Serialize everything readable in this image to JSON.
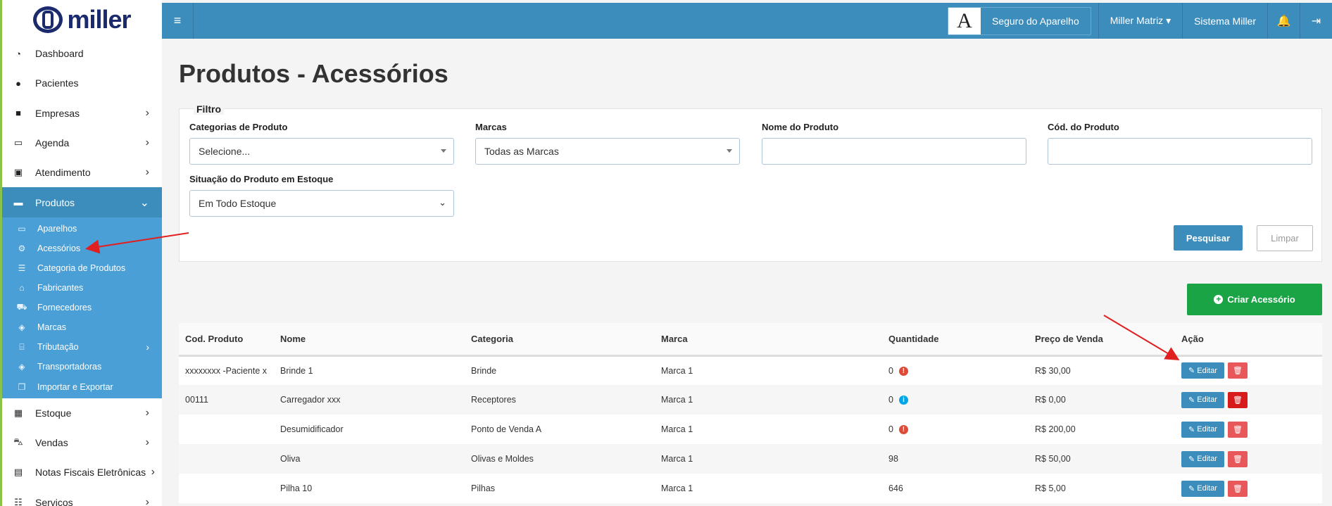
{
  "brand": {
    "logo_text": "miller"
  },
  "sidebar": {
    "items": [
      {
        "label": "Dashboard",
        "icon": "dashboard-icon",
        "glyph": "◔"
      },
      {
        "label": "Pacientes",
        "icon": "user-icon",
        "glyph": "●"
      },
      {
        "label": "Empresas",
        "icon": "briefcase-icon",
        "glyph": "■",
        "chev": "›"
      },
      {
        "label": "Agenda",
        "icon": "calendar-icon",
        "glyph": "▭",
        "chev": "›"
      },
      {
        "label": "Atendimento",
        "icon": "calendar-plus-icon",
        "glyph": "▣",
        "chev": "›"
      },
      {
        "label": "Produtos",
        "icon": "minus-square-icon",
        "glyph": "▬",
        "chev": "⌄"
      }
    ],
    "submenu": [
      {
        "label": "Aparelhos",
        "icon": "hdd-icon",
        "glyph": "▭"
      },
      {
        "label": "Acessórios",
        "icon": "cogs-icon",
        "glyph": "⚙"
      },
      {
        "label": "Categoria de Produtos",
        "icon": "list-icon",
        "glyph": "☰"
      },
      {
        "label": "Fabricantes",
        "icon": "industry-icon",
        "glyph": "⌂"
      },
      {
        "label": "Fornecedores",
        "icon": "truck-icon",
        "glyph": "⛟"
      },
      {
        "label": "Marcas",
        "icon": "tags-icon",
        "glyph": "◈"
      },
      {
        "label": "Tributação",
        "icon": "bank-icon",
        "glyph": "⌸",
        "chev": "›"
      },
      {
        "label": "Transportadoras",
        "icon": "tag-icon",
        "glyph": "◈"
      },
      {
        "label": "Importar e Exportar",
        "icon": "copy-icon",
        "glyph": "❐"
      }
    ],
    "bottom": [
      {
        "label": "Estoque",
        "icon": "grid-icon",
        "glyph": "▦",
        "chev": "›"
      },
      {
        "label": "Vendas",
        "icon": "cart-icon",
        "glyph": "⛍",
        "chev": "›"
      },
      {
        "label": "Notas Fiscais Eletrônicas",
        "icon": "file-icon",
        "glyph": "▤",
        "chev": "›"
      },
      {
        "label": "Serviços",
        "icon": "tasks-icon",
        "glyph": "☷",
        "chev": "›"
      }
    ]
  },
  "header": {
    "menu_glyph": "≡",
    "seguro_letter": "A",
    "seguro_label": "Seguro do Aparelho",
    "user_label": "Miller Matriz ▾",
    "system_label": "Sistema Miller",
    "bell_glyph": "🔔",
    "logout_glyph": "⇥"
  },
  "page": {
    "title": "Produtos - Acessórios"
  },
  "filter": {
    "legend": "Filtro",
    "categoria_label": "Categorias de Produto",
    "categoria_value": "Selecione...",
    "marcas_label": "Marcas",
    "marcas_value": "Todas as Marcas",
    "nome_label": "Nome do Produto",
    "nome_value": "",
    "cod_label": "Cód. do Produto",
    "cod_value": "",
    "situacao_label": "Situação do Produto em Estoque",
    "situacao_value": "Em Todo Estoque",
    "pesquisar_label": "Pesquisar",
    "limpar_label": "Limpar"
  },
  "criar": {
    "label": "Criar Acessório",
    "glyph": "+"
  },
  "table": {
    "headers": [
      "Cod. Produto",
      "Nome",
      "Categoria",
      "Marca",
      "Quantidade",
      "Preço de Venda",
      "Ação"
    ],
    "edit_label": "Editar",
    "edit_glyph": "✎",
    "delete_glyph": "🗑",
    "rows": [
      {
        "cod": "xxxxxxxx -Paciente x",
        "nome": "Brinde 1",
        "categoria": "Brinde",
        "marca": "Marca 1",
        "qtd": "0",
        "alert": "!",
        "preco": "R$ 30,00"
      },
      {
        "cod": "00111",
        "nome": "Carregador xxx",
        "categoria": "Receptores",
        "marca": "Marca 1",
        "qtd": "0",
        "alert": "i",
        "preco": "R$ 0,00"
      },
      {
        "cod": "",
        "nome": "Desumidificador",
        "categoria": "Ponto de Venda A",
        "marca": "Marca 1",
        "qtd": "0",
        "alert": "!",
        "preco": "R$ 200,00"
      },
      {
        "cod": "",
        "nome": "Oliva",
        "categoria": "Olivas e Moldes",
        "marca": "Marca 1",
        "qtd": "98",
        "alert": "",
        "preco": "R$ 50,00"
      },
      {
        "cod": "",
        "nome": "Pilha 10",
        "categoria": "Pilhas",
        "marca": "Marca 1",
        "qtd": "646",
        "alert": "",
        "preco": "R$ 5,00"
      }
    ]
  },
  "colors": {
    "header": "#3c8dbc",
    "submenu": "#4a9fd6",
    "success": "#1aa446",
    "danger": "#e8585a",
    "annotation": "#e02020"
  }
}
